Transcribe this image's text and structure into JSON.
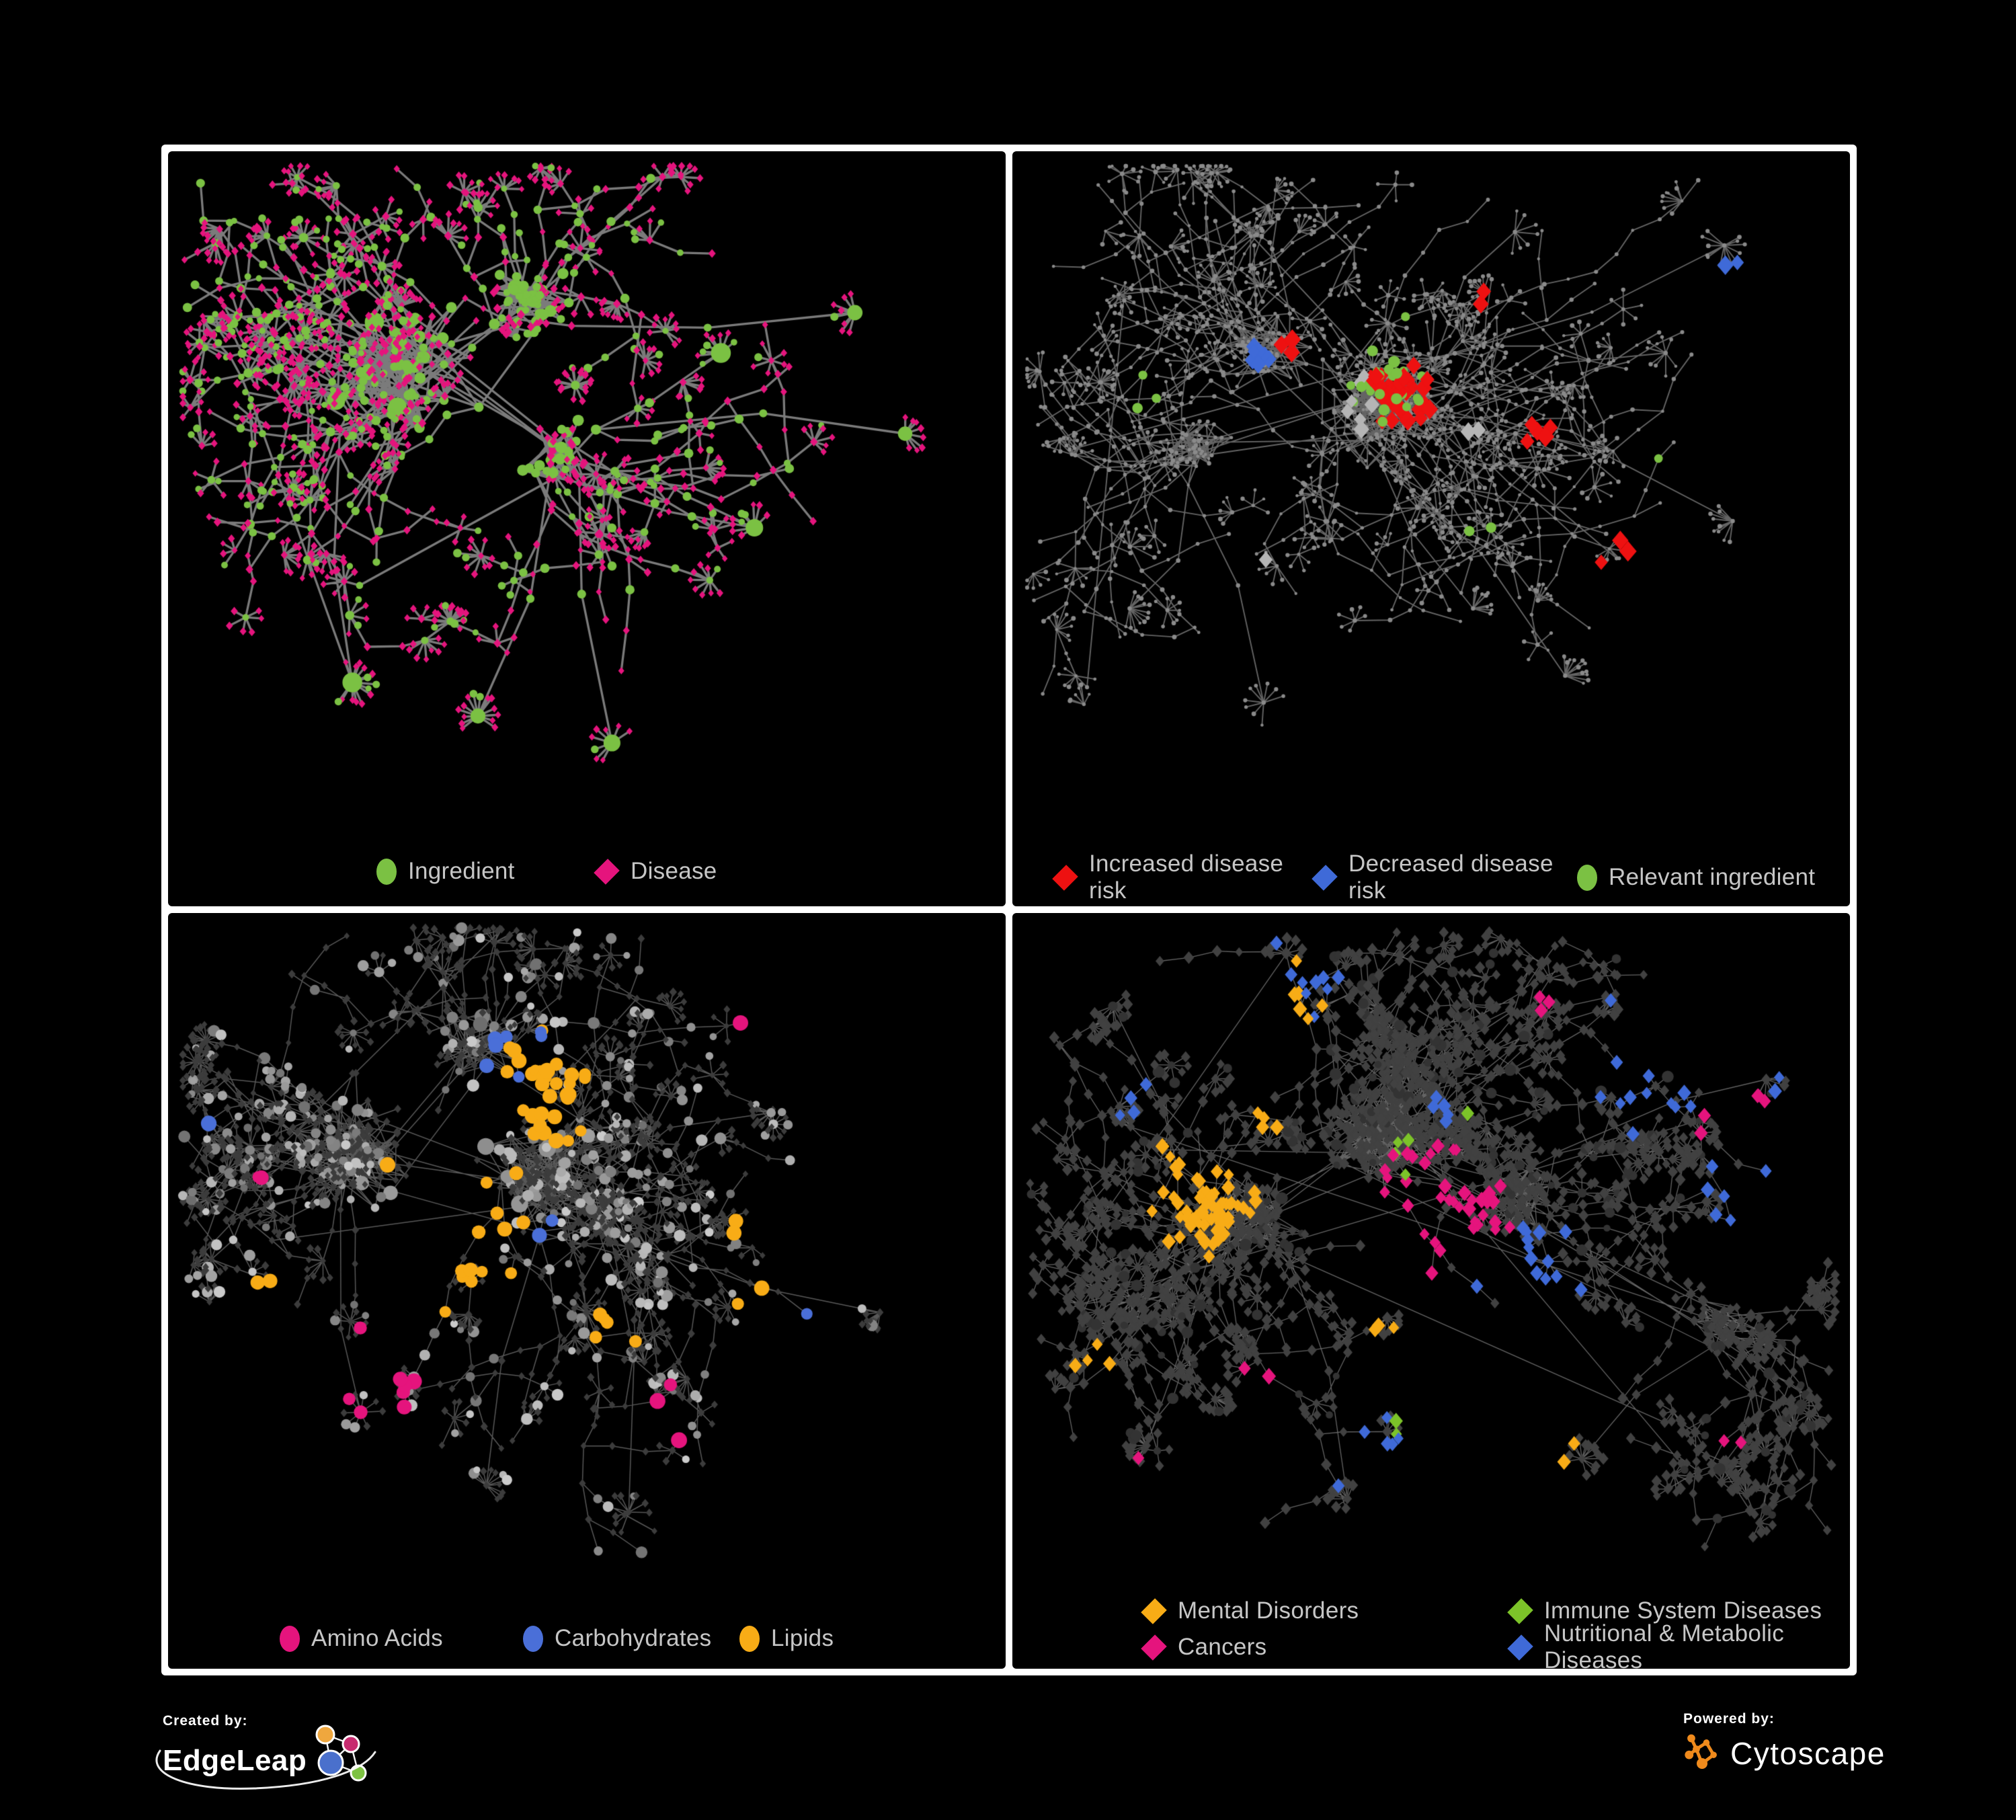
{
  "page": {
    "background": "#000000",
    "frame_color": "#ffffff",
    "legend_text_color": "#c6c6c6"
  },
  "panels": [
    {
      "id": "ingredient-disease",
      "position": "top-left",
      "legend": {
        "items": [
          {
            "label": "Ingredient",
            "shape": "circle",
            "color": "#7bc143"
          },
          {
            "label": "Disease",
            "shape": "diamond",
            "color": "#e5147d"
          }
        ]
      },
      "style": {
        "edge_color": "#828282",
        "node_colors": {
          "ingredient": "#7bc143",
          "disease": "#e5147d"
        }
      }
    },
    {
      "id": "disease-risk",
      "position": "top-right",
      "legend": {
        "items": [
          {
            "label": "Increased disease risk",
            "shape": "diamond",
            "color": "#ee1111"
          },
          {
            "label": "Decreased disease risk",
            "shape": "diamond",
            "color": "#3f6ad8"
          },
          {
            "label": "Relevant ingredient",
            "shape": "circle",
            "color": "#7bc143"
          }
        ]
      },
      "style": {
        "edge_color": "#757575",
        "node_colors": {
          "base": "#8a8a8a",
          "increased": "#ee1111",
          "decreased": "#3f6ad8",
          "unclassified": "#b5b5b5",
          "ingredient": "#7bc143"
        }
      }
    },
    {
      "id": "nutrient-classes",
      "position": "bottom-left",
      "legend": {
        "items": [
          {
            "label": "Amino Acids",
            "shape": "circle",
            "color": "#e5147d"
          },
          {
            "label": "Carbohydrates",
            "shape": "circle",
            "color": "#4a6fd8"
          },
          {
            "label": "Lipids",
            "shape": "circle",
            "color": "#f8ac16"
          }
        ]
      },
      "style": {
        "edge_color": "#a0a0a0",
        "node_colors": {
          "base_diamond": "#3c3c3c",
          "base_circle": "#9a9a9a",
          "amino_acids": "#e5147d",
          "carbohydrates": "#4a6fd8",
          "lipids": "#f8ac16"
        }
      }
    },
    {
      "id": "disease-classes",
      "position": "bottom-right",
      "legend": {
        "items": [
          {
            "label": "Mental Disorders",
            "shape": "diamond",
            "color": "#f8ac16"
          },
          {
            "label": "Immune System Diseases",
            "shape": "diamond",
            "color": "#7cc329"
          },
          {
            "label": "Cancers",
            "shape": "diamond",
            "color": "#e5147d"
          },
          {
            "label": "Nutritional & Metabolic Diseases",
            "shape": "diamond",
            "color": "#3f6ad8"
          }
        ]
      },
      "style": {
        "edge_color": "#9a9a9a",
        "node_colors": {
          "base": "#414141",
          "hub": "#333333",
          "mental": "#f8ac16",
          "immune": "#7cc329",
          "cancers": "#e5147d",
          "nutritional": "#3f6ad8"
        }
      }
    }
  ],
  "footer": {
    "created_by": {
      "label": "Created by:",
      "brand": "EdgeLeap"
    },
    "powered_by": {
      "label": "Powered by:",
      "brand": "Cytoscape"
    }
  }
}
